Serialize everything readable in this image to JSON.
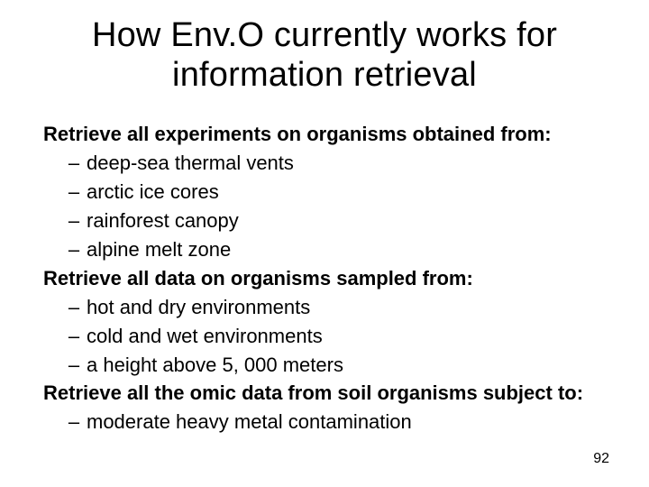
{
  "title": "How Env.O currently works for information retrieval",
  "sections": [
    {
      "heading": "Retrieve all experiments on organisms obtained from:",
      "items": [
        "deep-sea thermal vents",
        "arctic ice cores",
        "rainforest canopy",
        "alpine melt zone"
      ]
    },
    {
      "heading": "Retrieve all data on organisms sampled from:",
      "items": [
        "hot and dry environments",
        "cold and wet environments",
        "a height above 5, 000 meters"
      ]
    },
    {
      "heading": "Retrieve all the omic data from soil organisms subject to:",
      "items": [
        "moderate heavy metal contamination"
      ]
    }
  ],
  "page_number": "92",
  "style": {
    "background_color": "#ffffff",
    "text_color": "#000000",
    "title_fontsize": 38,
    "body_fontsize": 22,
    "heading_fontweight": 700,
    "bullet_char": "–",
    "page_number_fontsize": 16
  }
}
